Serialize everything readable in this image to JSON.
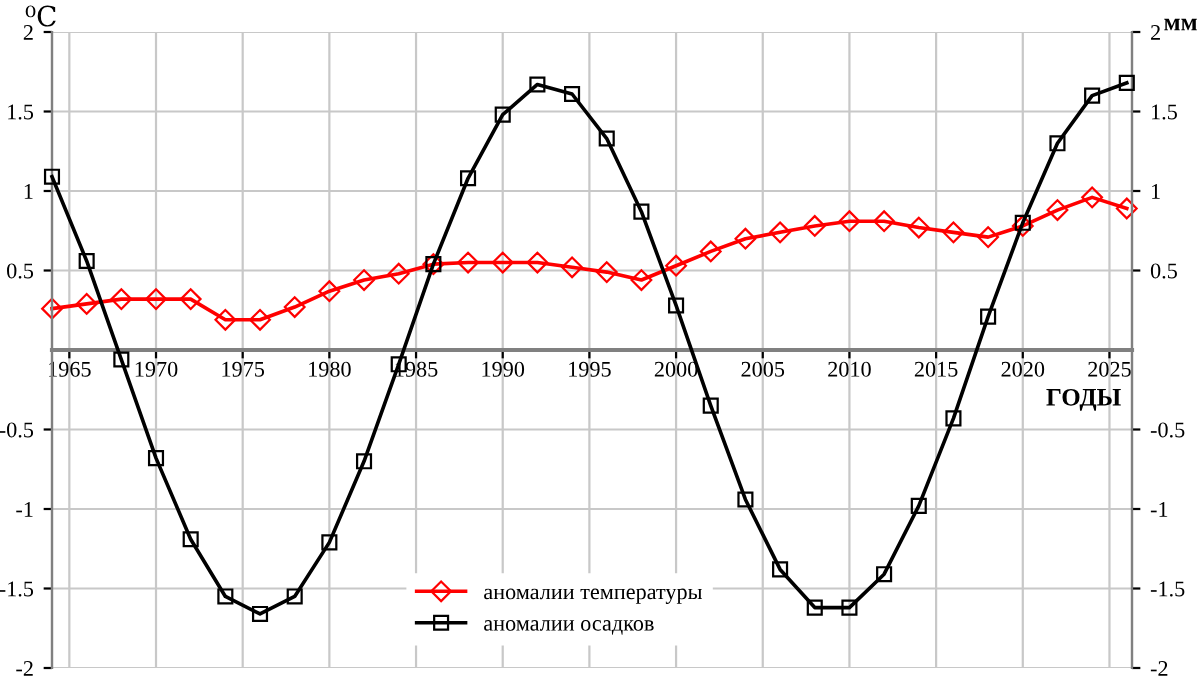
{
  "chart_data": {
    "type": "line",
    "xlabel": "ГОДЫ",
    "ylabel": "⁰C",
    "y2label": "мм",
    "x": [
      1964,
      1966,
      1968,
      1970,
      1972,
      1974,
      1976,
      1978,
      1980,
      1982,
      1984,
      1986,
      1988,
      1990,
      1992,
      1994,
      1996,
      1998,
      2000,
      2002,
      2004,
      2006,
      2008,
      2010,
      2012,
      2014,
      2016,
      2018,
      2020,
      2022,
      2024,
      2026
    ],
    "series": [
      {
        "name": "аномалии температуры",
        "color": "#ff0000",
        "marker": "diamond",
        "values": [
          0.26,
          0.29,
          0.32,
          0.32,
          0.32,
          0.19,
          0.19,
          0.27,
          0.37,
          0.44,
          0.48,
          0.54,
          0.55,
          0.55,
          0.55,
          0.52,
          0.49,
          0.44,
          0.53,
          0.62,
          0.7,
          0.74,
          0.78,
          0.81,
          0.81,
          0.77,
          0.74,
          0.71,
          0.78,
          0.88,
          0.96,
          0.89
        ]
      },
      {
        "name": "аномалии осадков",
        "color": "#000000",
        "marker": "square",
        "axis": "y2",
        "values": [
          1.09,
          0.56,
          -0.06,
          -0.68,
          -1.19,
          -1.55,
          -1.66,
          -1.55,
          -1.21,
          -0.7,
          -0.09,
          0.54,
          1.08,
          1.48,
          1.67,
          1.61,
          1.33,
          0.87,
          0.28,
          -0.35,
          -0.94,
          -1.38,
          -1.62,
          -1.62,
          -1.41,
          -0.98,
          -0.43,
          0.21,
          0.8,
          1.3,
          1.6,
          1.68
        ]
      }
    ],
    "xlim": [
      1964,
      2026.3
    ],
    "xticks": [
      1965,
      1970,
      1975,
      1980,
      1985,
      1990,
      1995,
      2000,
      2005,
      2010,
      2015,
      2020,
      2025
    ],
    "ylim": [
      -2,
      2
    ],
    "yticks": [
      -2,
      -1.5,
      -1,
      -0.5,
      0.5,
      1,
      1.5,
      2
    ],
    "y2lim": [
      -2,
      2
    ],
    "y2ticks": [
      -2,
      -1.5,
      -1,
      -0.5,
      0.5,
      1,
      1.5,
      2
    ],
    "grid": true,
    "legend": "bottom",
    "line_style": "solid"
  }
}
